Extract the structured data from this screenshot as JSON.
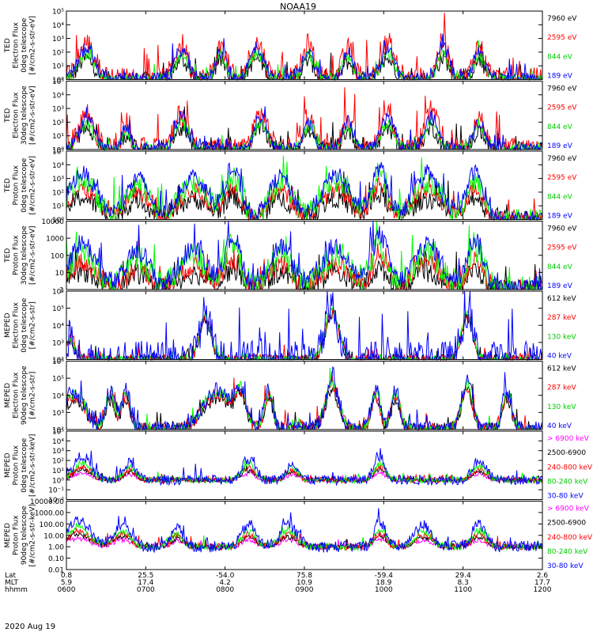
{
  "title": "NOAA19",
  "date": "2020 Aug 19",
  "x_axis": {
    "row_labels": [
      "Lat",
      "MLT",
      "hhmm"
    ],
    "columns": [
      {
        "lat": "0.8",
        "mlt": "5.9",
        "hhmm": "0600"
      },
      {
        "lat": "25.5",
        "mlt": "17.4",
        "hhmm": "0700"
      },
      {
        "lat": "-54.0",
        "mlt": "4.2",
        "hhmm": "0800"
      },
      {
        "lat": "75.8",
        "mlt": "10.9",
        "hhmm": "0900"
      },
      {
        "lat": "-59.4",
        "mlt": "18.9",
        "hhmm": "1000"
      },
      {
        "lat": "29.4",
        "mlt": "8.3",
        "hhmm": "1100"
      },
      {
        "lat": "2.6",
        "mlt": "17.7",
        "hhmm": "1200"
      }
    ]
  },
  "chart_data": [
    {
      "type": "line",
      "panel": "TED Electron Flux 0deg telescope",
      "ylabel": [
        "TED",
        "Electron Flux",
        "0deg telescope",
        "[#/cm2-s-str-eV]"
      ],
      "yscale": "log",
      "ylim": [
        1,
        100000
      ],
      "ticks": [
        "10⁰",
        "10¹",
        "10²",
        "10³",
        "10⁴",
        "10⁵"
      ],
      "x_hours": [
        6,
        12
      ],
      "floor": 1,
      "passes": [
        {
          "t": 6.25,
          "w": 0.14,
          "peak": 2.5
        },
        {
          "t": 7.45,
          "w": 0.12,
          "peak": 2.4
        },
        {
          "t": 7.95,
          "w": 0.1,
          "peak": 2.2
        },
        {
          "t": 8.4,
          "w": 0.13,
          "peak": 2.5
        },
        {
          "t": 9.05,
          "w": 0.1,
          "peak": 2.4
        },
        {
          "t": 9.55,
          "w": 0.1,
          "peak": 2.1
        },
        {
          "t": 10.05,
          "w": 0.12,
          "peak": 2.5
        },
        {
          "t": 10.75,
          "w": 0.1,
          "peak": 2.6
        },
        {
          "t": 11.2,
          "w": 0.1,
          "peak": 2.3
        }
      ],
      "series": [
        {
          "name": "7960 eV",
          "color": "#000000",
          "scale": 0.6,
          "noise": 0.6
        },
        {
          "name": "2595 eV",
          "color": "#ff0000",
          "scale": 1.05,
          "noise": 0.9
        },
        {
          "name": "844 eV",
          "color": "#00ff00",
          "scale": 0.75,
          "noise": 0.4
        },
        {
          "name": "189 eV",
          "color": "#0000ff",
          "scale": 0.9,
          "noise": 0.5
        }
      ],
      "legend": [
        {
          "text": "7960 eV",
          "color": "#000000"
        },
        {
          "text": "2595 eV",
          "color": "#ff0000"
        },
        {
          "text": "844 eV",
          "color": "#00cc00"
        },
        {
          "text": "189 eV",
          "color": "#0000ff"
        }
      ]
    },
    {
      "type": "line",
      "panel": "TED Electron Flux 30deg telescope",
      "ylabel": [
        "TED",
        "Electron Flux",
        "30deg telescope",
        "[#/cm2-s-str-eV]"
      ],
      "yscale": "log",
      "ylim": [
        1,
        100000
      ],
      "ticks": [
        "10⁰",
        "10¹",
        "10²",
        "10³",
        "10⁴",
        "10⁵"
      ],
      "x_hours": [
        6,
        12
      ],
      "floor": 1,
      "passes": [
        {
          "t": 6.25,
          "w": 0.14,
          "peak": 2.5
        },
        {
          "t": 6.75,
          "w": 0.08,
          "peak": 1.8
        },
        {
          "t": 7.45,
          "w": 0.12,
          "peak": 2.5
        },
        {
          "t": 8.45,
          "w": 0.12,
          "peak": 2.6
        },
        {
          "t": 9.05,
          "w": 0.1,
          "peak": 2.2
        },
        {
          "t": 9.55,
          "w": 0.1,
          "peak": 2.2
        },
        {
          "t": 10.05,
          "w": 0.12,
          "peak": 2.5
        },
        {
          "t": 10.6,
          "w": 0.12,
          "peak": 2.6
        },
        {
          "t": 11.2,
          "w": 0.1,
          "peak": 2.3
        }
      ],
      "series": [
        {
          "name": "7960 eV",
          "color": "#000000",
          "scale": 0.6,
          "noise": 0.6
        },
        {
          "name": "2595 eV",
          "color": "#ff0000",
          "scale": 1.05,
          "noise": 0.9
        },
        {
          "name": "844 eV",
          "color": "#00ff00",
          "scale": 0.75,
          "noise": 0.4
        },
        {
          "name": "189 eV",
          "color": "#0000ff",
          "scale": 0.9,
          "noise": 0.5
        }
      ],
      "legend": [
        {
          "text": "7960 eV",
          "color": "#000000"
        },
        {
          "text": "2595 eV",
          "color": "#ff0000"
        },
        {
          "text": "844 eV",
          "color": "#00cc00"
        },
        {
          "text": "189 eV",
          "color": "#0000ff"
        }
      ]
    },
    {
      "type": "line",
      "panel": "TED Proton Flux 0deg telescope",
      "ylabel": [
        "TED",
        "Proton Flux",
        "0deg telescope",
        "[#/cm2-s-str-eV]"
      ],
      "yscale": "log",
      "ylim": [
        1,
        100000
      ],
      "ticks": [
        "10⁰",
        "10¹",
        "10²",
        "10³",
        "10⁴",
        "10⁵"
      ],
      "x_hours": [
        6,
        12
      ],
      "floor": 1,
      "passes": [
        {
          "t": 6.2,
          "w": 0.25,
          "peak": 3.2
        },
        {
          "t": 6.9,
          "w": 0.2,
          "peak": 2.9
        },
        {
          "t": 7.6,
          "w": 0.25,
          "peak": 3.0
        },
        {
          "t": 8.1,
          "w": 0.15,
          "peak": 3.4
        },
        {
          "t": 8.7,
          "w": 0.2,
          "peak": 3.0
        },
        {
          "t": 9.4,
          "w": 0.25,
          "peak": 3.1
        },
        {
          "t": 9.95,
          "w": 0.15,
          "peak": 3.5
        },
        {
          "t": 10.55,
          "w": 0.25,
          "peak": 3.0
        },
        {
          "t": 11.15,
          "w": 0.15,
          "peak": 3.3
        }
      ],
      "series": [
        {
          "name": "7960 eV",
          "color": "#000000",
          "scale": 0.5,
          "noise": 0.7
        },
        {
          "name": "2595 eV",
          "color": "#ff0000",
          "scale": 0.7,
          "noise": 0.6
        },
        {
          "name": "844 eV",
          "color": "#00ff00",
          "scale": 0.9,
          "noise": 0.8
        },
        {
          "name": "189 eV",
          "color": "#0000ff",
          "scale": 1.05,
          "noise": 0.6
        }
      ],
      "legend": [
        {
          "text": "7960 eV",
          "color": "#000000"
        },
        {
          "text": "2595 eV",
          "color": "#ff0000"
        },
        {
          "text": "844 eV",
          "color": "#00cc00"
        },
        {
          "text": "189 eV",
          "color": "#0000ff"
        }
      ]
    },
    {
      "type": "line",
      "panel": "TED Proton Flux 30deg telescope",
      "ylabel": [
        "TED",
        "Proton Flux",
        "30deg telescope",
        "[#/cm2-s-str-eV]"
      ],
      "yscale": "log",
      "ylim": [
        1,
        10000
      ],
      "ticks": [
        "1",
        "10",
        "100",
        "1000",
        "10000"
      ],
      "x_hours": [
        6,
        12
      ],
      "floor": 1,
      "passes": [
        {
          "t": 6.2,
          "w": 0.25,
          "peak": 2.6
        },
        {
          "t": 6.9,
          "w": 0.2,
          "peak": 2.2
        },
        {
          "t": 7.6,
          "w": 0.25,
          "peak": 2.3
        },
        {
          "t": 8.1,
          "w": 0.15,
          "peak": 2.9
        },
        {
          "t": 8.7,
          "w": 0.2,
          "peak": 2.4
        },
        {
          "t": 9.4,
          "w": 0.25,
          "peak": 2.4
        },
        {
          "t": 9.95,
          "w": 0.15,
          "peak": 3.0
        },
        {
          "t": 10.55,
          "w": 0.25,
          "peak": 2.5
        },
        {
          "t": 11.15,
          "w": 0.15,
          "peak": 2.8
        }
      ],
      "series": [
        {
          "name": "7960 eV",
          "color": "#000000",
          "scale": 0.4,
          "noise": 0.6
        },
        {
          "name": "2595 eV",
          "color": "#ff0000",
          "scale": 0.6,
          "noise": 0.6
        },
        {
          "name": "844 eV",
          "color": "#00ff00",
          "scale": 0.85,
          "noise": 0.8
        },
        {
          "name": "189 eV",
          "color": "#0000ff",
          "scale": 1.05,
          "noise": 0.6
        }
      ],
      "legend": [
        {
          "text": "7960 eV",
          "color": "#000000"
        },
        {
          "text": "2595 eV",
          "color": "#ff0000"
        },
        {
          "text": "844 eV",
          "color": "#00cc00"
        },
        {
          "text": "189 eV",
          "color": "#0000ff"
        }
      ]
    },
    {
      "type": "line",
      "panel": "MEPED Electron Flux 0deg telescope",
      "ylabel": [
        "MEPED",
        "Electron Flux",
        "0deg telescope",
        "[#/cm2-s-str]"
      ],
      "yscale": "log",
      "ylim": [
        100,
        1000000
      ],
      "ticks": [
        "10²",
        "10³",
        "10⁴",
        "10⁵",
        "10⁶"
      ],
      "x_hours": [
        6,
        12
      ],
      "floor": 100,
      "passes": [
        {
          "t": 6.05,
          "w": 0.08,
          "peak": 1.3
        },
        {
          "t": 7.75,
          "w": 0.1,
          "peak": 2.7
        },
        {
          "t": 9.35,
          "w": 0.12,
          "peak": 3.0
        },
        {
          "t": 11.05,
          "w": 0.1,
          "peak": 2.8
        }
      ],
      "series": [
        {
          "name": "612 keV",
          "color": "#000000",
          "scale": 0.88,
          "noise": 0.3
        },
        {
          "name": "287 keV",
          "color": "#ff0000",
          "scale": 0.93,
          "noise": 0.3
        },
        {
          "name": "130 keV",
          "color": "#00ff00",
          "scale": 0.97,
          "noise": 0.2
        },
        {
          "name": "40 keV",
          "color": "#0000ff",
          "scale": 1.0,
          "noise": 1.1
        }
      ],
      "legend": [
        {
          "text": "612 keV",
          "color": "#000000"
        },
        {
          "text": "287 keV",
          "color": "#ff0000"
        },
        {
          "text": "130 keV",
          "color": "#00cc00"
        },
        {
          "text": "40 keV",
          "color": "#0000ff"
        }
      ]
    },
    {
      "type": "line",
      "panel": "MEPED Electron Flux 90deg telescope",
      "ylabel": [
        "MEPED",
        "Electron Flux",
        "90deg telescope",
        "[#/cm2-s-str]"
      ],
      "yscale": "log",
      "ylim": [
        100,
        1000000
      ],
      "ticks": [
        "10²",
        "10³",
        "10⁴",
        "10⁵",
        "10⁶"
      ],
      "x_hours": [
        6,
        12
      ],
      "floor": 100,
      "passes": [
        {
          "t": 6.1,
          "w": 0.2,
          "peak": 2.2
        },
        {
          "t": 6.55,
          "w": 0.08,
          "peak": 2.2
        },
        {
          "t": 6.75,
          "w": 0.08,
          "peak": 2.3
        },
        {
          "t": 7.9,
          "w": 0.25,
          "peak": 2.3
        },
        {
          "t": 8.2,
          "w": 0.1,
          "peak": 2.1
        },
        {
          "t": 8.55,
          "w": 0.08,
          "peak": 2.3
        },
        {
          "t": 9.35,
          "w": 0.12,
          "peak": 2.9
        },
        {
          "t": 9.9,
          "w": 0.08,
          "peak": 2.3
        },
        {
          "t": 10.15,
          "w": 0.08,
          "peak": 2.2
        },
        {
          "t": 11.05,
          "w": 0.1,
          "peak": 2.8
        },
        {
          "t": 11.55,
          "w": 0.08,
          "peak": 2.3
        }
      ],
      "series": [
        {
          "name": "612 keV",
          "color": "#000000",
          "scale": 0.8,
          "noise": 0.4
        },
        {
          "name": "287 keV",
          "color": "#ff0000",
          "scale": 0.88,
          "noise": 0.4
        },
        {
          "name": "130 keV",
          "color": "#00ff00",
          "scale": 0.95,
          "noise": 0.3
        },
        {
          "name": "40 keV",
          "color": "#0000ff",
          "scale": 1.0,
          "noise": 0.5
        }
      ],
      "legend": [
        {
          "text": "612 keV",
          "color": "#000000"
        },
        {
          "text": "287 keV",
          "color": "#ff0000"
        },
        {
          "text": "130 keV",
          "color": "#00cc00"
        },
        {
          "text": "40 keV",
          "color": "#0000ff"
        }
      ]
    },
    {
      "type": "line",
      "panel": "MEPED Proton Flux 0deg telescope",
      "ylabel": [
        "MEPED",
        "Proton Flux",
        "0deg telescope",
        "[#/cm2-s-str-keV]"
      ],
      "yscale": "log",
      "ylim": [
        0.01,
        100000
      ],
      "ticks": [
        "10⁻²",
        "10⁻¹",
        "10⁰",
        "10¹",
        "10²",
        "10³",
        "10⁴",
        "10⁵"
      ],
      "x_hours": [
        6,
        12
      ],
      "floor": 1,
      "passes": [
        {
          "t": 6.2,
          "w": 0.15,
          "peak": 2.5
        },
        {
          "t": 6.8,
          "w": 0.1,
          "peak": 1.8
        },
        {
          "t": 8.3,
          "w": 0.12,
          "peak": 2.1
        },
        {
          "t": 8.85,
          "w": 0.1,
          "peak": 1.8
        },
        {
          "t": 9.95,
          "w": 0.1,
          "peak": 2.4
        },
        {
          "t": 11.2,
          "w": 0.12,
          "peak": 2.0
        }
      ],
      "series": [
        {
          "name": "> 6900 keV",
          "color": "#ff00ff",
          "scale": 0.3,
          "noise": 0.2
        },
        {
          "name": "2500-6900",
          "color": "#000000",
          "scale": 0.45,
          "noise": 0.2
        },
        {
          "name": "240-800 keV",
          "color": "#ff0000",
          "scale": 0.55,
          "noise": 0.3
        },
        {
          "name": "80-240 keV",
          "color": "#00ff00",
          "scale": 0.7,
          "noise": 0.3
        },
        {
          "name": "30-80 keV",
          "color": "#0000ff",
          "scale": 1.0,
          "noise": 0.5
        }
      ],
      "legend": [
        {
          "text": "> 6900 keV",
          "color": "#ff00ff"
        },
        {
          "text": "2500-6900",
          "color": "#000000"
        },
        {
          "text": "240-800 keV",
          "color": "#ff0000"
        },
        {
          "text": "80-240 keV",
          "color": "#00cc00"
        },
        {
          "text": "30-80 keV",
          "color": "#0000ff"
        }
      ]
    },
    {
      "type": "line",
      "panel": "MEPED Proton Flux 90deg telescope",
      "ylabel": [
        "MEPED",
        "Proton Flux",
        "90deg telescope",
        "[#/cm2-s-str-keV]"
      ],
      "yscale": "log",
      "ylim": [
        0.01,
        10000
      ],
      "ticks": [
        "0.01",
        "0.10",
        "1.00",
        "10.00",
        "100.00",
        "1000.00",
        "10000.00"
      ],
      "x_hours": [
        6,
        12
      ],
      "floor": 1,
      "passes": [
        {
          "t": 6.15,
          "w": 0.2,
          "peak": 2.4
        },
        {
          "t": 6.7,
          "w": 0.15,
          "peak": 2.0
        },
        {
          "t": 7.4,
          "w": 0.1,
          "peak": 1.6
        },
        {
          "t": 8.3,
          "w": 0.12,
          "peak": 2.0
        },
        {
          "t": 8.8,
          "w": 0.15,
          "peak": 1.9
        },
        {
          "t": 9.95,
          "w": 0.1,
          "peak": 2.2
        },
        {
          "t": 10.5,
          "w": 0.15,
          "peak": 1.9
        },
        {
          "t": 11.2,
          "w": 0.12,
          "peak": 2.0
        }
      ],
      "series": [
        {
          "name": "> 6900 keV",
          "color": "#ff00ff",
          "scale": 0.3,
          "noise": 0.2
        },
        {
          "name": "2500-6900",
          "color": "#000000",
          "scale": 0.45,
          "noise": 0.2
        },
        {
          "name": "240-800 keV",
          "color": "#ff0000",
          "scale": 0.55,
          "noise": 0.3
        },
        {
          "name": "80-240 keV",
          "color": "#00ff00",
          "scale": 0.7,
          "noise": 0.3
        },
        {
          "name": "30-80 keV",
          "color": "#0000ff",
          "scale": 1.0,
          "noise": 0.5
        }
      ],
      "legend": [
        {
          "text": "> 6900 keV",
          "color": "#ff00ff"
        },
        {
          "text": "2500-6900",
          "color": "#000000"
        },
        {
          "text": "240-800 keV",
          "color": "#ff0000"
        },
        {
          "text": "80-240 keV",
          "color": "#00cc00"
        },
        {
          "text": "30-80 keV",
          "color": "#0000ff"
        }
      ]
    }
  ]
}
